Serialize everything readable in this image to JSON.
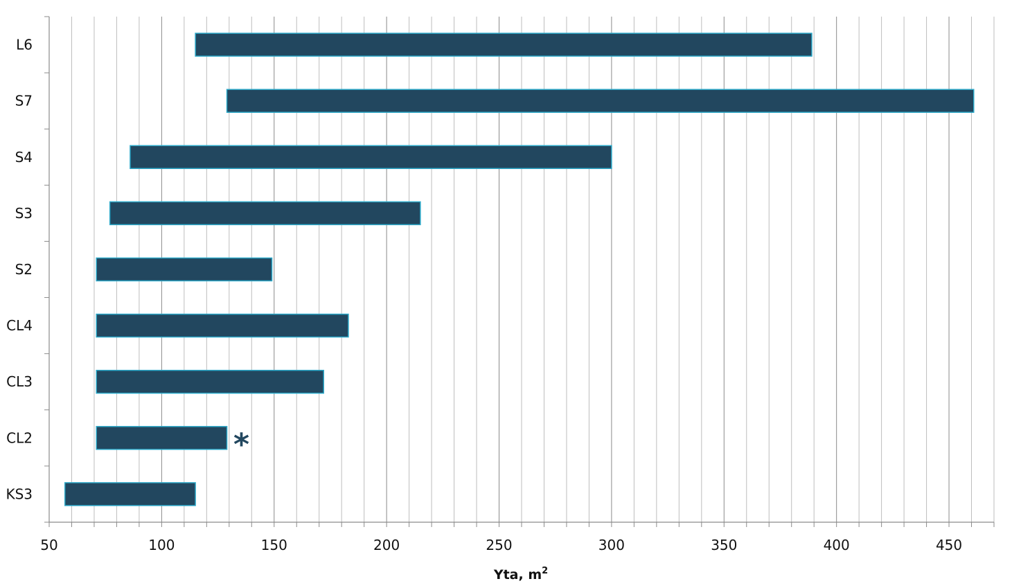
{
  "chart_data": {
    "type": "bar",
    "orientation": "horizontal",
    "subtype": "floating-range",
    "categories": [
      "L6",
      "S7",
      "S4",
      "S3",
      "S2",
      "CL4",
      "CL3",
      "CL2",
      "KS3"
    ],
    "series": [
      {
        "ranges": [
          [
            115,
            389
          ],
          [
            129,
            461
          ],
          [
            86,
            300
          ],
          [
            77,
            215
          ],
          [
            71,
            149
          ],
          [
            71,
            183
          ],
          [
            71,
            172
          ],
          [
            71,
            129
          ],
          [
            57,
            115
          ]
        ]
      }
    ],
    "xlabel": "Yta, m",
    "xlabel_superscript": "2",
    "xlim": [
      50,
      470
    ],
    "xticks": [
      50,
      100,
      150,
      200,
      250,
      300,
      350,
      400,
      450
    ],
    "grid": {
      "vertical_step": 10,
      "horizontal": false
    },
    "bar_color": "#22475f",
    "bar_edge_color": "#2ba8c8",
    "annotations": [
      {
        "text": "*",
        "category": "CL2"
      }
    ],
    "legend": "none"
  }
}
